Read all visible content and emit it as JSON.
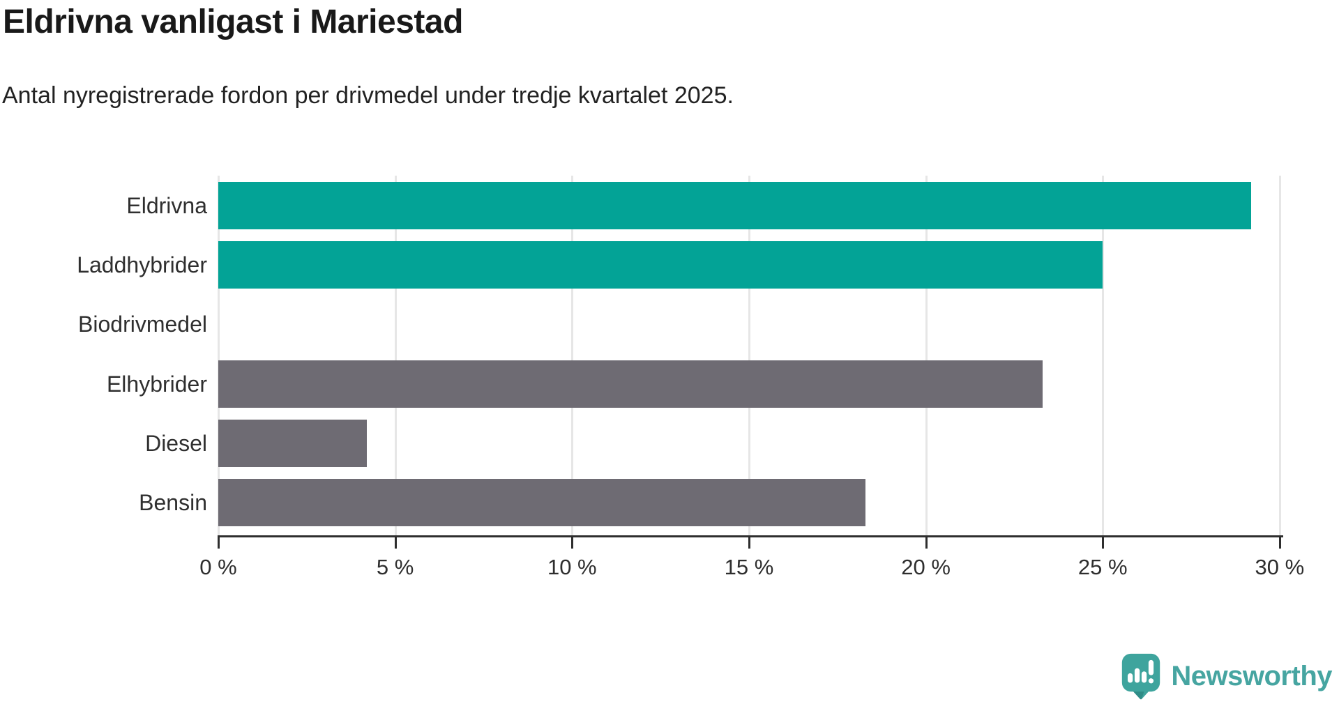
{
  "header": {
    "title": "Eldrivna vanligast i Mariestad",
    "subtitle": "Antal nyregistrerade fordon per drivmedel under tredje kvartalet 2025."
  },
  "chart_data": {
    "type": "bar",
    "orientation": "horizontal",
    "title": "Eldrivna vanligast i Mariestad",
    "categories": [
      "Eldrivna",
      "Laddhybrider",
      "Biodrivmedel",
      "Elhybrider",
      "Diesel",
      "Bensin"
    ],
    "values": [
      29.2,
      25.0,
      0.0,
      23.3,
      4.2,
      18.3
    ],
    "unit": "%",
    "highlighted": [
      true,
      true,
      false,
      false,
      false,
      false
    ],
    "xlabel": "",
    "ylabel": "",
    "xlim": [
      0,
      30.8
    ],
    "x_ticks": [
      0,
      5,
      10,
      15,
      20,
      25,
      30
    ],
    "x_tick_labels": [
      "0 %",
      "5 %",
      "10 %",
      "15 %",
      "20 %",
      "25 %",
      "30 %"
    ],
    "grid": "vertical-only",
    "legend": "none",
    "colors": {
      "highlight": "#03a396",
      "default": "#6e6b73"
    }
  },
  "footer": {
    "brand": "Newsworthy",
    "logo_icon": "newsworthy-pin-barchart-icon"
  },
  "colors": {
    "grid": "#e6e6e6",
    "axis": "#2e2e2e",
    "brand_text_teal": "#46a5a1",
    "logo_teal": "#3ea49d",
    "logo_teal_dark": "#2f8c87"
  }
}
